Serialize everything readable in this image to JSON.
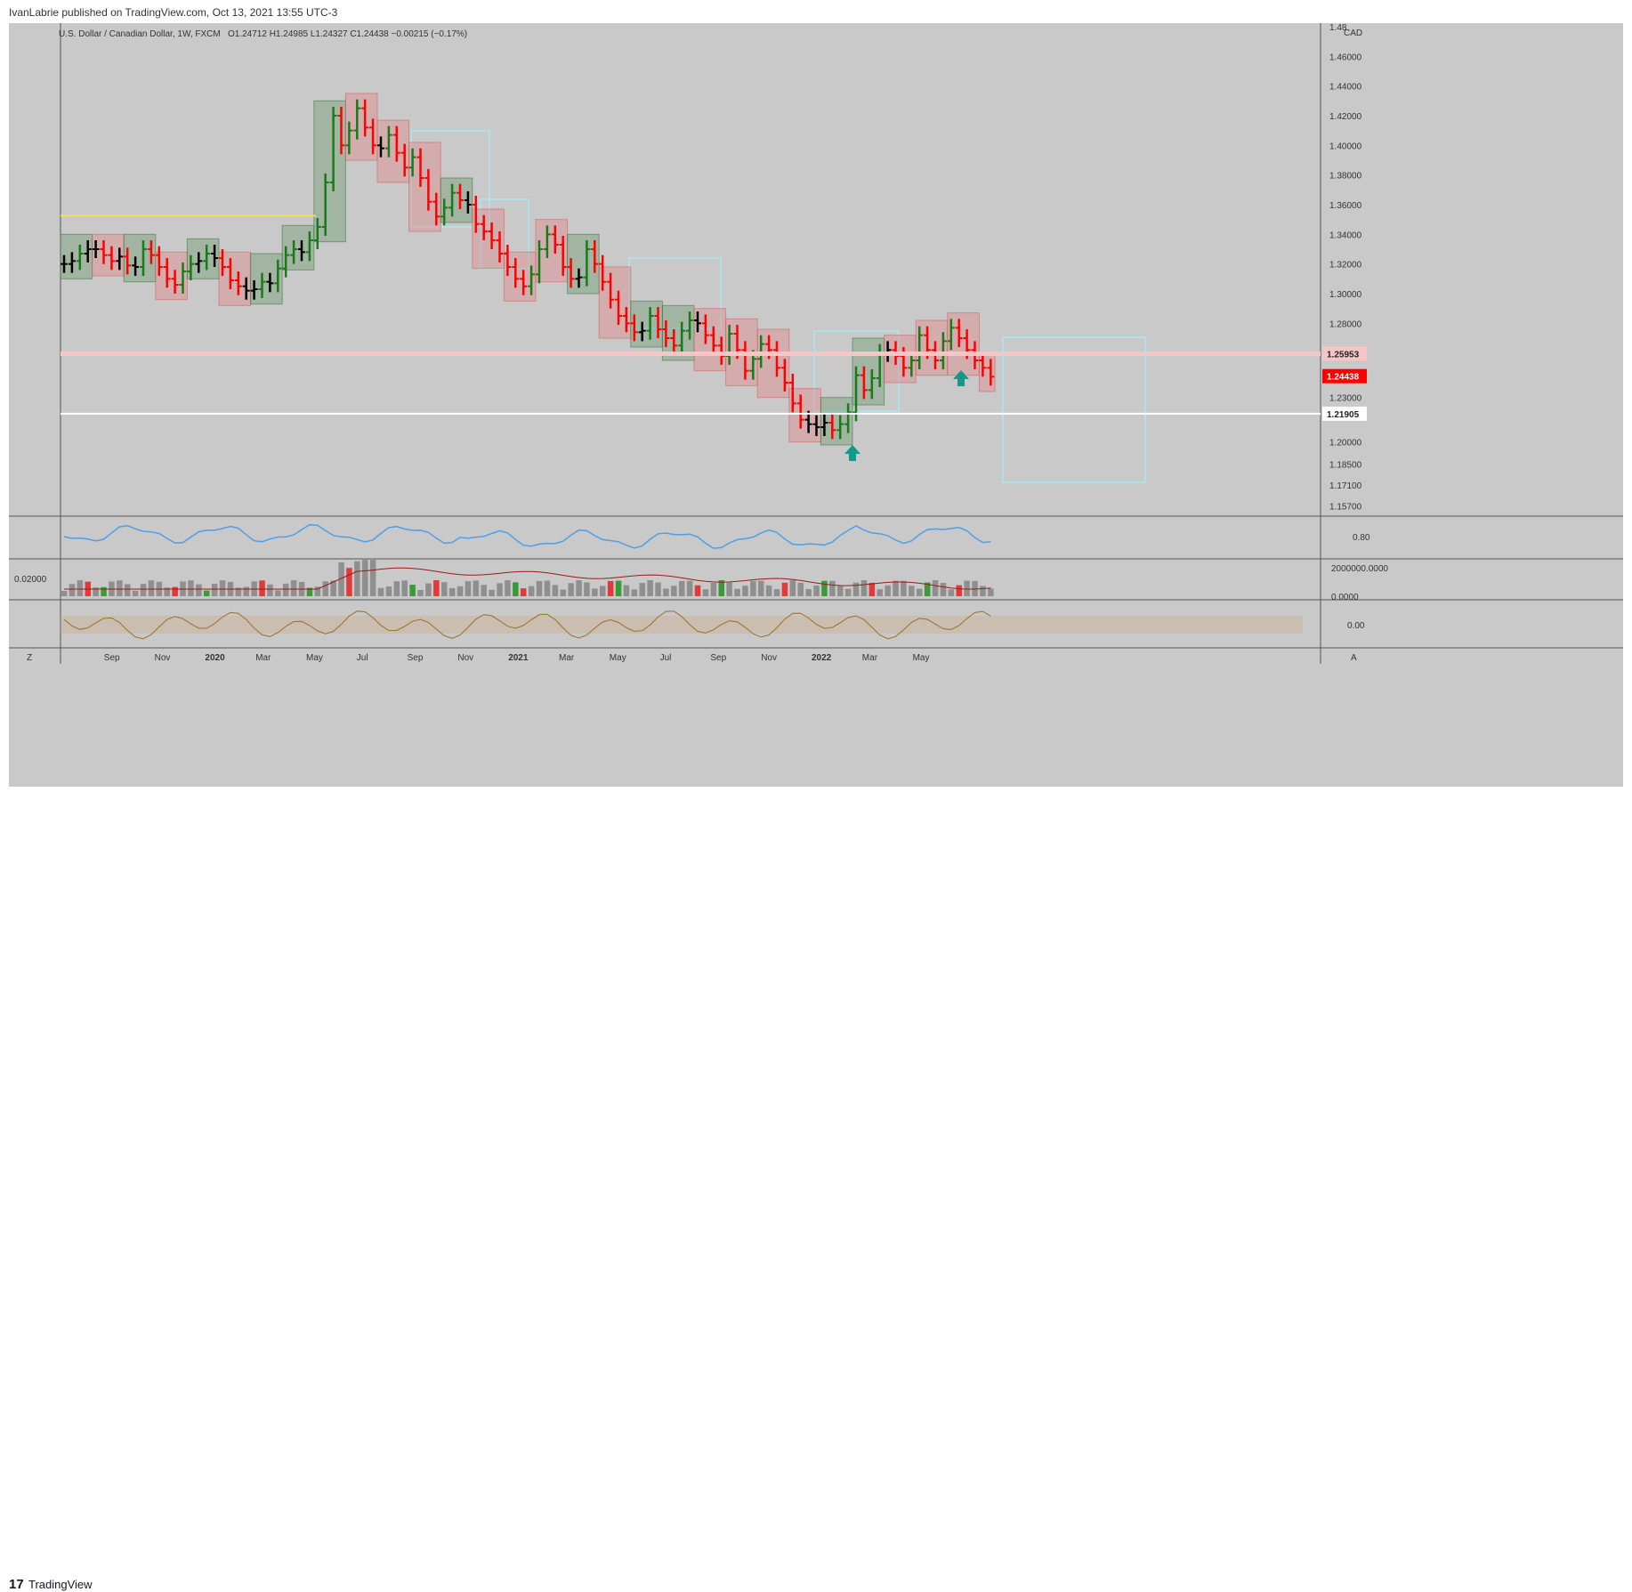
{
  "header": {
    "published": "IvanLabrie published on TradingView.com, Oct 13, 2021 13:55 UTC-3"
  },
  "footer": {
    "logo_mark": "17",
    "brand": "TradingView"
  },
  "chart_data": {
    "type": "bar",
    "title": "U.S. Dollar / Canadian Dollar, 1W, FXCM",
    "ohlc_legend": "O1.24712  H1.24985  L1.24327  C1.24438  −0.00215 (−0.17%)",
    "currency": "CAD",
    "y_ticks": [
      "1.48",
      "1.46000",
      "1.44000",
      "1.42000",
      "1.40000",
      "1.38000",
      "1.36000",
      "1.34000",
      "1.32000",
      "1.30000",
      "1.28000",
      "1.25953",
      "1.24438",
      "1.23000",
      "1.21905",
      "1.20000",
      "1.18500",
      "1.17100",
      "1.15700"
    ],
    "x_ticks": [
      "Sep",
      "Nov",
      "2020",
      "Mar",
      "May",
      "Jul",
      "Sep",
      "Nov",
      "2021",
      "Mar",
      "May",
      "Jul",
      "Sep",
      "Nov",
      "2022",
      "Mar",
      "May"
    ],
    "price_labels": [
      {
        "value": "1.25953",
        "y": 1.25953,
        "color": "#f6c6c6",
        "text_color": "#222222"
      },
      {
        "value": "1.24438",
        "y": 1.24438,
        "color": "#ff0000",
        "text_color": "#ffffff"
      },
      {
        "value": "1.21905",
        "y": 1.21905,
        "color": "#ffffff",
        "text_color": "#222222"
      }
    ],
    "horizontal_lines": [
      {
        "y": 1.3525,
        "color": "#f6dc5c",
        "from": "2019-07",
        "to": "2020-02"
      },
      {
        "y": 1.25953,
        "color": "#f6c6c6",
        "from": "2019-07",
        "to": "2022-06"
      },
      {
        "y": 1.21905,
        "color": "#ffffff",
        "from": "2019-07",
        "to": "2022-06"
      }
    ],
    "close": [
      1.32,
      1.322,
      1.327,
      1.33,
      1.33,
      1.326,
      1.322,
      1.325,
      1.319,
      1.318,
      1.33,
      1.326,
      1.318,
      1.31,
      1.306,
      1.315,
      1.32,
      1.322,
      1.327,
      1.324,
      1.318,
      1.309,
      1.305,
      1.302,
      1.303,
      1.308,
      1.307,
      1.317,
      1.326,
      1.33,
      1.328,
      1.336,
      1.345,
      1.375,
      1.42,
      1.4,
      1.41,
      1.425,
      1.412,
      1.4,
      1.398,
      1.407,
      1.395,
      1.385,
      1.392,
      1.378,
      1.362,
      1.352,
      1.358,
      1.368,
      1.363,
      1.36,
      1.347,
      1.342,
      1.336,
      1.327,
      1.318,
      1.31,
      1.305,
      1.313,
      1.33,
      1.34,
      1.333,
      1.318,
      1.31,
      1.311,
      1.33,
      1.32,
      1.308,
      1.296,
      1.285,
      1.28,
      1.274,
      1.275,
      1.285,
      1.276,
      1.27,
      1.265,
      1.275,
      1.282,
      1.28,
      1.272,
      1.265,
      1.258,
      1.273,
      1.262,
      1.248,
      1.256,
      1.266,
      1.262,
      1.25,
      1.24,
      1.226,
      1.215,
      1.212,
      1.21,
      1.213,
      1.208,
      1.212,
      1.22,
      1.245,
      1.235,
      1.243,
      1.26,
      1.262,
      1.258,
      1.25,
      1.255,
      1.272,
      1.262,
      1.255,
      1.268,
      1.277,
      1.27,
      1.262,
      1.255,
      1.25,
      1.244
    ],
    "rsi_axis": "0.80",
    "volume_axis": [
      "2000000.0000",
      "0.0000"
    ],
    "left_value": "0.02000",
    "osc_axis": "0.00",
    "corner_left": "Z",
    "corner_right": "A"
  }
}
